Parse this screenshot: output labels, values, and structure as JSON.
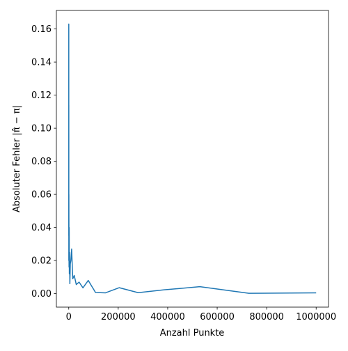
{
  "chart_data": {
    "type": "line",
    "xlabel": "Anzahl Punkte",
    "ylabel": "Absoluter Fehler |π̂ − π|",
    "x": [
      100,
      137,
      189,
      259,
      356,
      489,
      672,
      924,
      1269,
      1743,
      2395,
      3290,
      4520,
      6210,
      8532,
      11721,
      16103,
      22122,
      30392,
      41753,
      57362,
      78805,
      108264,
      148735,
      204336,
      280722,
      385662,
      529832,
      727895,
      1000000
    ],
    "series": [
      {
        "color": "#1f77b4",
        "values": [
          0.04,
          0.163,
          0.035,
          0.114,
          0.02,
          0.06,
          0.045,
          0.03,
          0.016,
          0.04,
          0.012,
          0.025,
          0.006,
          0.018,
          0.02,
          0.027,
          0.009,
          0.011,
          0.0055,
          0.007,
          0.0035,
          0.008,
          0.0007,
          0.0005,
          0.0036,
          0.0006,
          0.0023,
          0.0042,
          0.0002,
          0.0005
        ]
      }
    ],
    "xlim": [
      -50000,
      1050000
    ],
    "ylim": [
      -0.00815,
      0.1712
    ],
    "xticks": [
      0,
      200000,
      400000,
      600000,
      800000,
      1000000
    ],
    "yticks": [
      {
        "value": 0,
        "label": "0.00"
      },
      {
        "value": 0.02,
        "label": "0.02"
      },
      {
        "value": 0.04,
        "label": "0.04"
      },
      {
        "value": 0.06,
        "label": "0.06"
      },
      {
        "value": 0.08,
        "label": "0.08"
      },
      {
        "value": 0.1,
        "label": "0.10"
      },
      {
        "value": 0.12,
        "label": "0.12"
      },
      {
        "value": 0.14,
        "label": "0.14"
      },
      {
        "value": 0.16,
        "label": "0.16"
      }
    ],
    "grid": false
  }
}
